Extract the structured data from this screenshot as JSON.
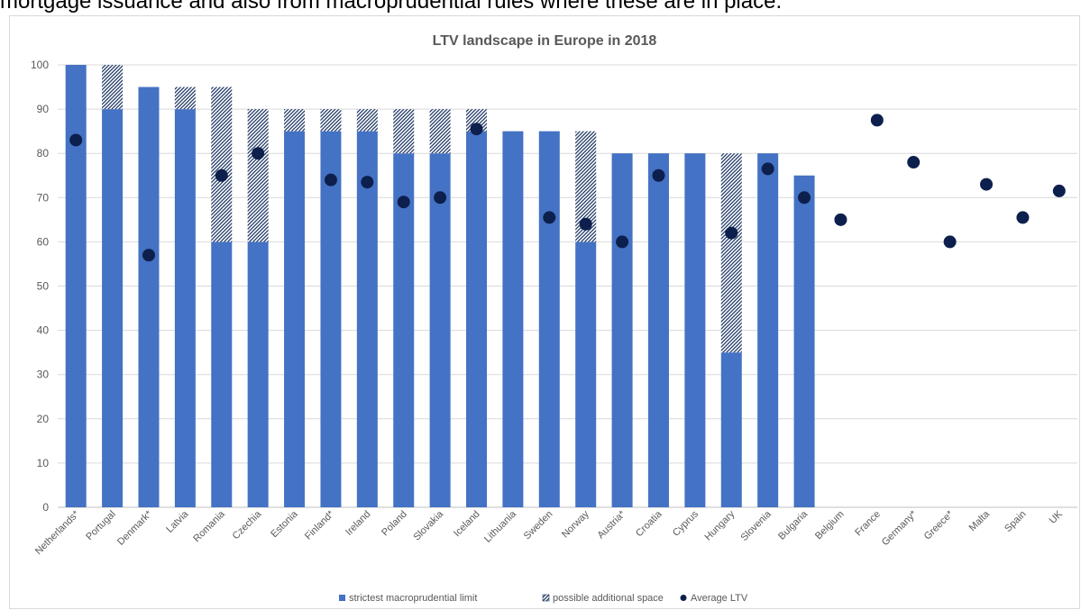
{
  "intro_text": "mortgage issuance and also from macroprudential rules where these are in place.",
  "chart_data": {
    "type": "bar",
    "title": "LTV landscape in Europe in 2018",
    "xlabel": "",
    "ylabel": "",
    "ylim": [
      0,
      100
    ],
    "yticks": [
      0,
      10,
      20,
      30,
      40,
      50,
      60,
      70,
      80,
      90,
      100
    ],
    "grid": true,
    "legend_position": "bottom",
    "categories": [
      "Netherlands*",
      "Portugal",
      "Denmark*",
      "Latvia",
      "Romania",
      "Czechia",
      "Estonia",
      "Finland*",
      "Ireland",
      "Poland",
      "Slovakia",
      "Iceland",
      "Lithuania",
      "Sweden",
      "Norway",
      "Austria*",
      "Croatia",
      "Cyprus",
      "Hungary",
      "Slovenia",
      "Bulgaria",
      "Belgium",
      "France",
      "Germany*",
      "Greece*",
      "Malta",
      "Spain",
      "UK"
    ],
    "series": [
      {
        "name": "strictest macroprudential limit",
        "kind": "bar",
        "color": "#4472c4",
        "values": [
          100,
          90,
          95,
          90,
          60,
          60,
          85,
          85,
          85,
          80,
          80,
          85,
          85,
          85,
          60,
          80,
          80,
          80,
          35,
          80,
          75,
          null,
          null,
          null,
          null,
          null,
          null,
          null
        ]
      },
      {
        "name": "possible additional space",
        "kind": "bar-stacked-hatched",
        "color": "#1f3864",
        "values": [
          0,
          10,
          0,
          5,
          35,
          30,
          5,
          5,
          5,
          10,
          10,
          5,
          0,
          0,
          25,
          0,
          0,
          0,
          45,
          0,
          0,
          null,
          null,
          null,
          null,
          null,
          null,
          null
        ]
      },
      {
        "name": "Average LTV",
        "kind": "scatter",
        "color": "#0d1f4d",
        "values": [
          83,
          null,
          57,
          null,
          75,
          80,
          null,
          74,
          73.5,
          69,
          70,
          85.5,
          null,
          65.5,
          64,
          60,
          75,
          null,
          62,
          76.5,
          70,
          65,
          87.5,
          78,
          60,
          73,
          65.5,
          71.5
        ]
      }
    ]
  }
}
